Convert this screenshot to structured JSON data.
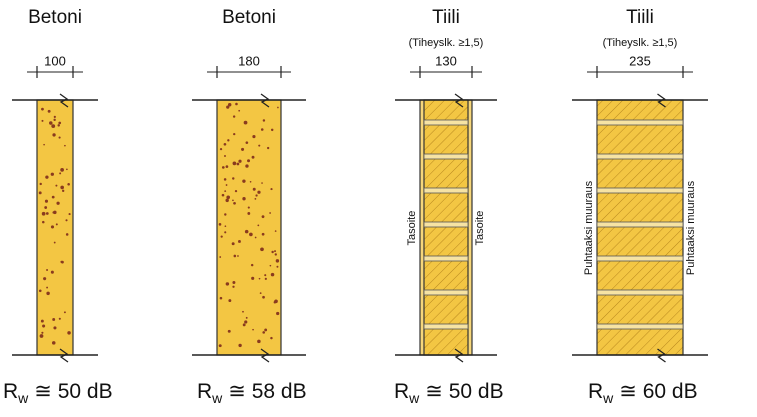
{
  "walls": [
    {
      "title": "Betoni",
      "dimension": "100",
      "rating": {
        "symbol": "R",
        "subscript": "w",
        "value": "≅ 50 dB"
      }
    },
    {
      "title": "Betoni",
      "dimension": "180",
      "rating": {
        "symbol": "R",
        "subscript": "w",
        "value": "≅ 58 dB"
      }
    },
    {
      "title": "Tiili",
      "note": "(Tiheyslk. ≥1,5)",
      "dimension": "130",
      "side_labels": [
        "Tasoite",
        "Tasoite"
      ],
      "rating": {
        "symbol": "R",
        "subscript": "w",
        "value": "≅ 50 dB"
      }
    },
    {
      "title": "Tiili",
      "note": "(Tiheyslk. ≥1,5)",
      "dimension": "235",
      "side_labels": [
        "Puhtaaksi muuraus",
        "Puhtaaksi muuraus"
      ],
      "rating": {
        "symbol": "R",
        "subscript": "w",
        "value": "≅ 60 dB"
      }
    }
  ]
}
